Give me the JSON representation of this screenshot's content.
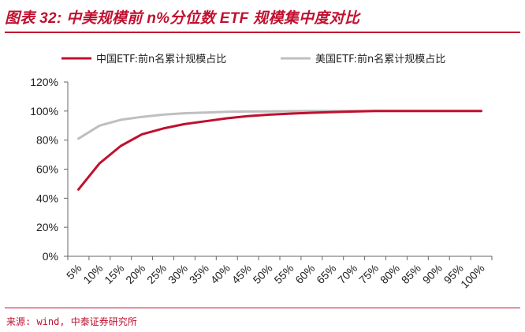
{
  "header": {
    "title": "图表 32: 中美规模前 n%分位数 ETF 规模集中度对比"
  },
  "footer": {
    "source": "来源: wind, 中泰证券研究所"
  },
  "chart_data": {
    "type": "line",
    "title": "图表 32: 中美规模前 n%分位数 ETF 规模集中度对比",
    "xlabel": "",
    "ylabel": "",
    "categories": [
      "5%",
      "10%",
      "15%",
      "20%",
      "25%",
      "30%",
      "35%",
      "40%",
      "45%",
      "50%",
      "55%",
      "60%",
      "65%",
      "70%",
      "75%",
      "80%",
      "85%",
      "90%",
      "95%",
      "100%"
    ],
    "y_ticks": [
      "0%",
      "20%",
      "40%",
      "60%",
      "80%",
      "100%",
      "120%"
    ],
    "ylim": [
      0,
      120
    ],
    "grid": false,
    "legend_position": "top",
    "series": [
      {
        "name": "中国ETF:前n名累计规模占比",
        "color": "#c0102f",
        "values": [
          46,
          64,
          76,
          84,
          88,
          91,
          93,
          95,
          96.5,
          97.5,
          98.2,
          98.8,
          99.3,
          99.7,
          100,
          100,
          100,
          100,
          100,
          100
        ]
      },
      {
        "name": "美国ETF:前n名累计规模占比",
        "color": "#bfbfbf",
        "values": [
          81,
          90,
          94,
          96,
          97.5,
          98.5,
          99,
          99.5,
          99.7,
          99.8,
          99.9,
          100,
          100,
          100,
          100,
          100,
          100,
          100,
          100,
          100
        ]
      }
    ]
  }
}
